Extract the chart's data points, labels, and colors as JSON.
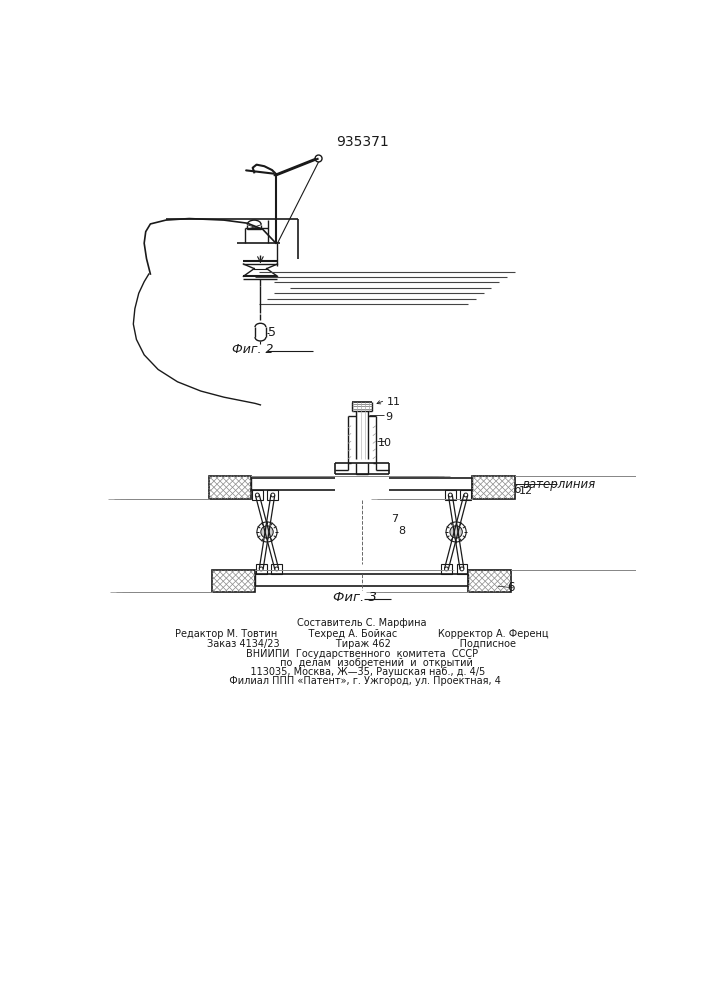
{
  "title": "935371",
  "bg_color": "#ffffff",
  "line_color": "#1a1a1a",
  "footer_lines": [
    "Составитель С. Марфина",
    "Редактор М. Товтин          Техред А. Бойкас             Корректор А. Ференц",
    "Заказ 4134/23                  Тираж 462                      Подписное",
    "ВНИИПИ  Государственного  комитета  СССР",
    "         по  делам  изобретений  и  открытий",
    "    113035, Москва, Ж—35, Раушская наб., д. 4/5",
    "  Филиал ППП «Патент», г. Ужгород, ул. Проектная, 4"
  ]
}
